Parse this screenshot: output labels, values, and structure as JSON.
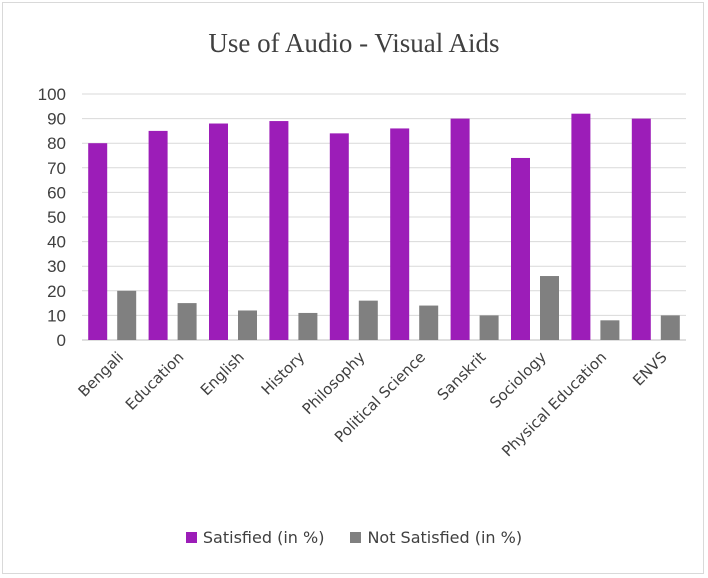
{
  "chart_data": {
    "type": "bar",
    "title": "Use of Audio - Visual Aids",
    "categories": [
      "Bengali",
      "Education",
      "English",
      "History",
      "Philosophy",
      "Political Science",
      "Sanskrit",
      "Sociology",
      "Physical Education",
      "ENVS"
    ],
    "series": [
      {
        "name": "Satisfied (in %)",
        "color": "#9c1db8",
        "values": [
          80,
          85,
          88,
          89,
          84,
          86,
          90,
          74,
          92,
          90
        ]
      },
      {
        "name": "Not Satisfied (in %)",
        "color": "#808080",
        "values": [
          20,
          15,
          12,
          11,
          16,
          14,
          10,
          26,
          8,
          10
        ]
      }
    ],
    "ylim": [
      0,
      100
    ],
    "yticks": [
      "0",
      "10",
      "20",
      "30",
      "40",
      "50",
      "60",
      "70",
      "80",
      "90",
      "100"
    ],
    "grid": true,
    "legend_position": "bottom"
  }
}
